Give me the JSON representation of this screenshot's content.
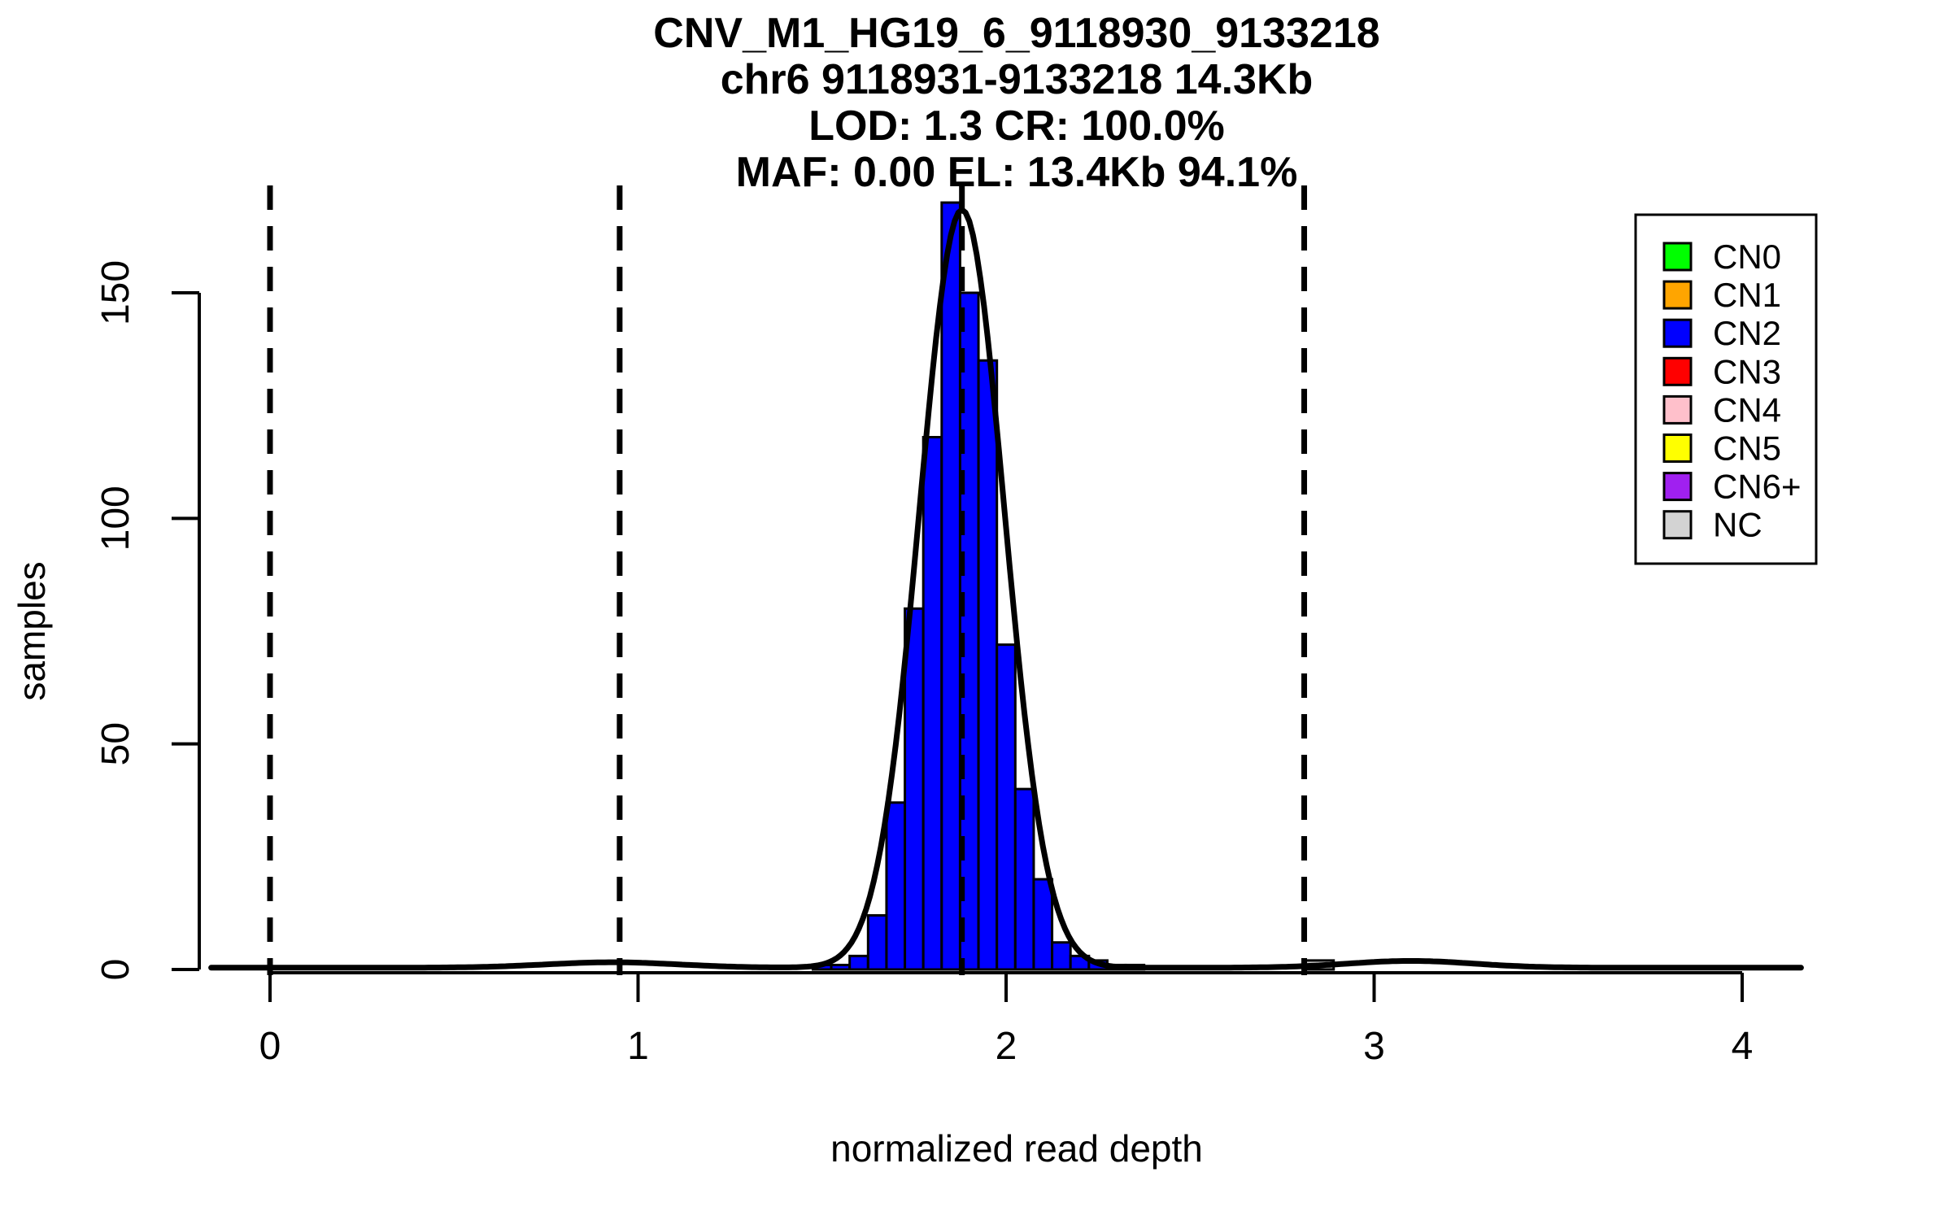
{
  "title_lines": [
    "CNV_M1_HG19_6_9118930_9133218",
    "chr6 9118931-9133218 14.3Kb",
    "LOD: 1.3 CR: 100.0%",
    "MAF: 0.00 EL: 13.4Kb 94.1%"
  ],
  "axes": {
    "x_label": "normalized read depth",
    "y_label": "samples",
    "x_ticks": [
      0,
      1,
      2,
      3,
      4
    ],
    "y_ticks": [
      0,
      50,
      100,
      150
    ],
    "x_range": [
      -0.16,
      4.16
    ],
    "y_range": [
      0,
      173
    ],
    "grid": "off"
  },
  "legend": {
    "position": "top-right",
    "items": [
      {
        "label": "CN0",
        "color": "#00FF00"
      },
      {
        "label": "CN1",
        "color": "#FFA500"
      },
      {
        "label": "CN2",
        "color": "#0000FF"
      },
      {
        "label": "CN3",
        "color": "#FF0000"
      },
      {
        "label": "CN4",
        "color": "#FFC0CB"
      },
      {
        "label": "CN5",
        "color": "#FFFF00"
      },
      {
        "label": "CN6+",
        "color": "#A020F0"
      },
      {
        "label": "NC",
        "color": "#D3D3D3"
      }
    ]
  },
  "chart_data": {
    "type": "bar",
    "subtype": "histogram-with-density",
    "title": "CNV_M1_HG19_6_9118930_9133218",
    "xlabel": "normalized read depth",
    "ylabel": "samples",
    "xlim": [
      -0.16,
      4.16
    ],
    "ylim": [
      0,
      173
    ],
    "bin_start": 1.475,
    "bin_width": 0.05,
    "counts": [
      1,
      1,
      3,
      12,
      37,
      80,
      118,
      170,
      150,
      135,
      72,
      40,
      20,
      6,
      3,
      2,
      1,
      1
    ],
    "bar_color": "#0000FF",
    "bar_series_name": "CN2",
    "nc_bar": {
      "x0": 2.81,
      "x1": 2.89,
      "count": 2,
      "color": "#D3D3D3",
      "series": "NC"
    },
    "density_curve": {
      "color": "#000000",
      "peak": 168,
      "mu": 1.88,
      "sigma": 0.115,
      "baseline": 0.4,
      "tail_bumps": [
        {
          "center": 0.93,
          "sigma": 0.18,
          "height": 1.2
        },
        {
          "center": 3.1,
          "sigma": 0.17,
          "height": 1.5
        }
      ]
    },
    "dashed_vlines": [
      0,
      0.95,
      1.88,
      2.81
    ]
  }
}
